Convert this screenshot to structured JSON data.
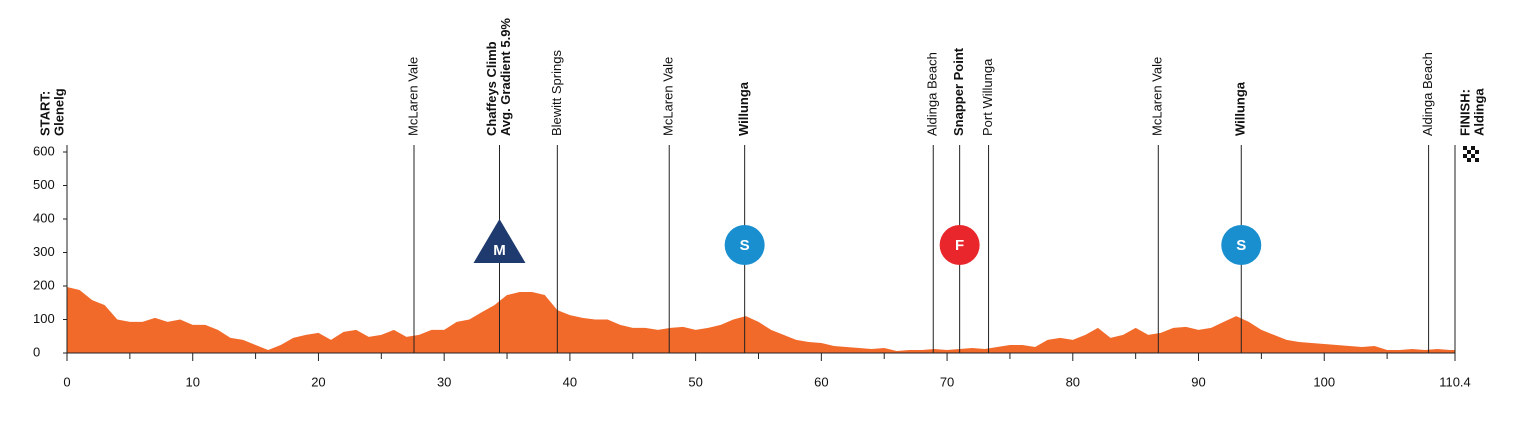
{
  "chart_data": {
    "type": "area",
    "color": "#f26a2a",
    "x": [
      0,
      1,
      2,
      3,
      4,
      5,
      6,
      7,
      8,
      9,
      10,
      11,
      12,
      13,
      14,
      15,
      16,
      17,
      18,
      19,
      20,
      21,
      22,
      23,
      24,
      25,
      26,
      27,
      28,
      29,
      30,
      31,
      32,
      33,
      34,
      35,
      36,
      37,
      38,
      39,
      40,
      41,
      42,
      43,
      44,
      45,
      46,
      47,
      48,
      49,
      50,
      51,
      52,
      53,
      54,
      55,
      56,
      57,
      58,
      59,
      60,
      61,
      62,
      63,
      64,
      65,
      66,
      67,
      68,
      69,
      70,
      71,
      72,
      73,
      74,
      75,
      76,
      77,
      78,
      79,
      80,
      81,
      82,
      83,
      84,
      85,
      86,
      87,
      88,
      89,
      90,
      91,
      92,
      93,
      94,
      95,
      96,
      97,
      98,
      99,
      100,
      101,
      102,
      103,
      104,
      105,
      106,
      107,
      108,
      109,
      110,
      110.4
    ],
    "values": [
      197,
      188,
      158,
      143,
      100,
      93,
      93,
      105,
      93,
      100,
      84,
      84,
      69,
      45,
      39,
      24,
      9,
      24,
      45,
      54,
      60,
      39,
      63,
      69,
      48,
      54,
      69,
      48,
      54,
      69,
      69,
      93,
      100,
      122,
      143,
      173,
      182,
      182,
      173,
      128,
      113,
      105,
      100,
      100,
      84,
      75,
      75,
      69,
      75,
      78,
      69,
      75,
      84,
      100,
      110,
      93,
      69,
      54,
      39,
      33,
      30,
      21,
      18,
      15,
      12,
      15,
      6,
      9,
      9,
      12,
      9,
      12,
      15,
      12,
      18,
      24,
      24,
      18,
      39,
      45,
      39,
      54,
      75,
      45,
      54,
      75,
      54,
      60,
      75,
      78,
      69,
      75,
      93,
      110,
      93,
      69,
      54,
      39,
      33,
      30,
      27,
      24,
      21,
      18,
      21,
      9,
      9,
      12,
      9,
      12,
      9,
      9
    ],
    "xlim": [
      0,
      110.4
    ],
    "xticks": [
      0,
      10,
      20,
      30,
      40,
      50,
      60,
      70,
      80,
      90,
      100,
      110.4
    ],
    "xminor": [
      5,
      15,
      25,
      35,
      45,
      55,
      65,
      75,
      85,
      95,
      105
    ],
    "ylim": [
      0,
      600
    ],
    "yticks": [
      0,
      100,
      200,
      300,
      400,
      500,
      600
    ],
    "landmarks": [
      {
        "label": [
          "START:",
          "Glenelg"
        ],
        "km": 0,
        "bold": true
      },
      {
        "label": [
          "McLaren Vale"
        ],
        "km": 27.6,
        "bold": false
      },
      {
        "label": [
          "Chaffeys Climb",
          "Avg. Gradient 5.9%"
        ],
        "km": 34.4,
        "bold": true
      },
      {
        "label": [
          "Blewitt Springs"
        ],
        "km": 39.0,
        "bold": false
      },
      {
        "label": [
          "McLaren Vale"
        ],
        "km": 47.9,
        "bold": false
      },
      {
        "label": [
          "Willunga"
        ],
        "km": 53.9,
        "bold": true
      },
      {
        "label": [
          "Aldinga Beach"
        ],
        "km": 68.9,
        "bold": false
      },
      {
        "label": [
          "Snapper Point"
        ],
        "km": 71.0,
        "bold": true
      },
      {
        "label": [
          "Port Willunga"
        ],
        "km": 73.3,
        "bold": false
      },
      {
        "label": [
          "McLaren Vale"
        ],
        "km": 86.8,
        "bold": false
      },
      {
        "label": [
          "Willunga"
        ],
        "km": 93.4,
        "bold": true
      },
      {
        "label": [
          "Aldinga Beach"
        ],
        "km": 108.3,
        "bold": false
      },
      {
        "label": [
          "FINISH:",
          "Aldinga"
        ],
        "km": 110.4,
        "bold": true
      }
    ],
    "markers": [
      {
        "letter": "M",
        "km": 34.4,
        "shape": "triangle",
        "color": "#1f3a6e"
      },
      {
        "letter": "S",
        "km": 53.9,
        "shape": "circle",
        "color": "#1a8fd0"
      },
      {
        "letter": "F",
        "km": 71.0,
        "shape": "circle",
        "color": "#e8262b"
      },
      {
        "letter": "S",
        "km": 93.4,
        "shape": "circle",
        "color": "#1a8fd0"
      }
    ]
  }
}
